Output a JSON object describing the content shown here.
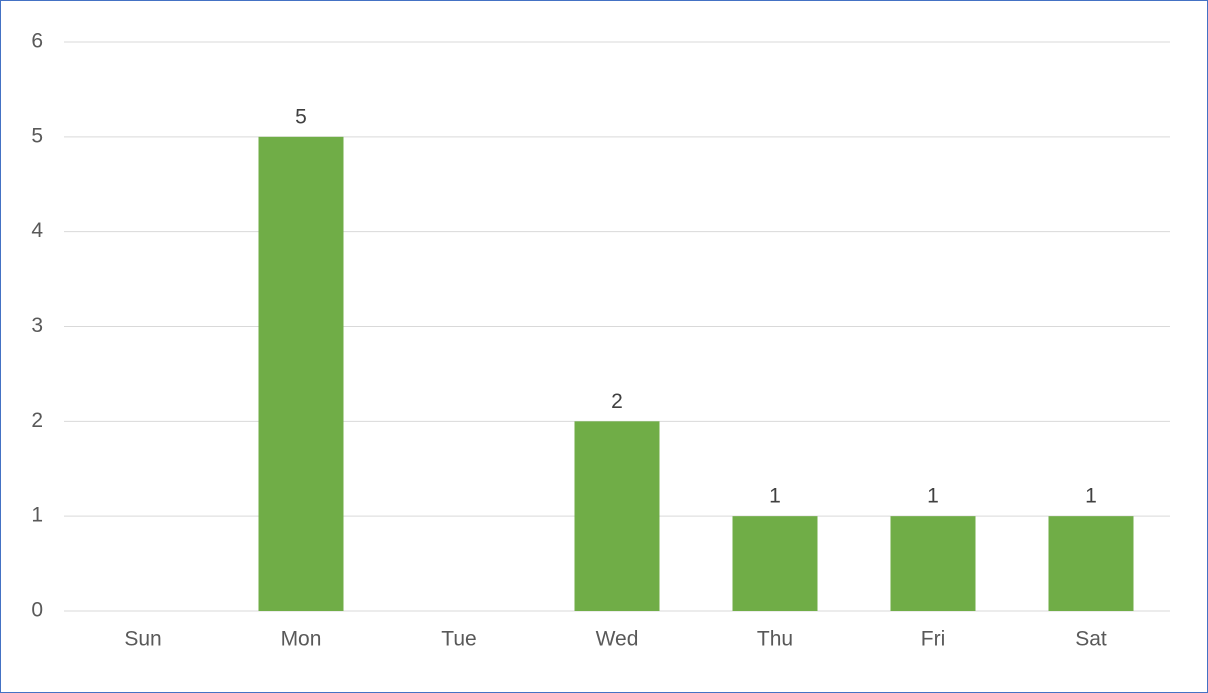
{
  "chart_data": {
    "type": "bar",
    "categories": [
      "Sun",
      "Mon",
      "Tue",
      "Wed",
      "Thu",
      "Fri",
      "Sat"
    ],
    "values": [
      0,
      5,
      0,
      2,
      1,
      1,
      1
    ],
    "color": "#70ad47",
    "ylim": [
      0,
      6
    ],
    "yticks": [
      0,
      1,
      2,
      3,
      4,
      5,
      6
    ],
    "grid": true
  }
}
